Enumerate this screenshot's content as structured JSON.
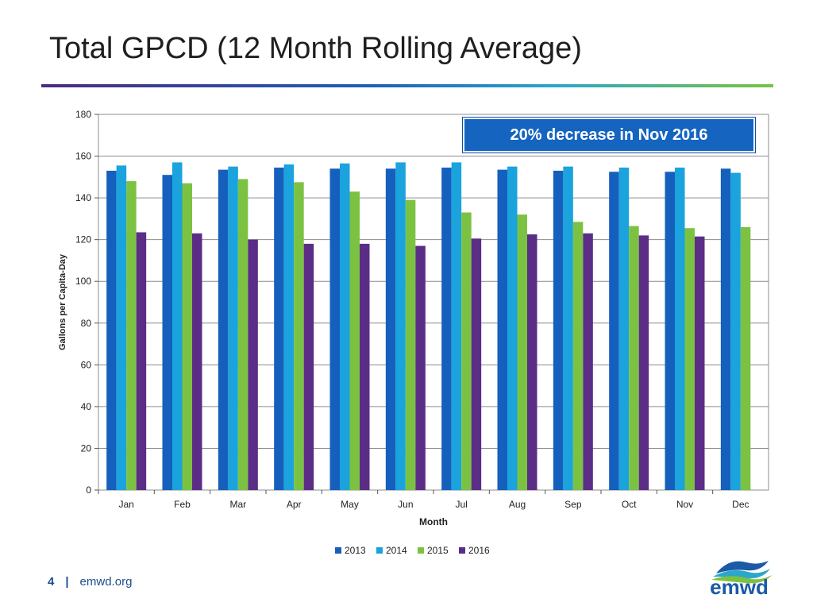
{
  "slide": {
    "title": "Total GPCD (12 Month Rolling Average)",
    "page_number": "4",
    "separator": "|",
    "website": "emwd.org",
    "logo_text": "emwd"
  },
  "callout": {
    "text": "20% decrease in Nov 2016"
  },
  "colors": {
    "2013": "#1560bd",
    "2014": "#1aa3dd",
    "2015": "#7cc242",
    "2016": "#5b2d87",
    "gridline": "#8c8c8c",
    "axis": "#555555"
  },
  "chart_data": {
    "type": "bar",
    "title": "",
    "xlabel": "Month",
    "ylabel": "Gallons per Capita-Day",
    "ylim": [
      0,
      180
    ],
    "yticks": [
      0,
      20,
      40,
      60,
      80,
      100,
      120,
      140,
      160,
      180
    ],
    "grid": true,
    "legend_position": "bottom",
    "categories": [
      "Jan",
      "Feb",
      "Mar",
      "Apr",
      "May",
      "Jun",
      "Jul",
      "Aug",
      "Sep",
      "Oct",
      "Nov",
      "Dec"
    ],
    "series": [
      {
        "name": "2013",
        "values": [
          153,
          151,
          153.5,
          154.5,
          154,
          154,
          154.5,
          153.5,
          153,
          152.5,
          152.5,
          154
        ]
      },
      {
        "name": "2014",
        "values": [
          155.5,
          157,
          155,
          156,
          156.5,
          157,
          157,
          155,
          155,
          154.5,
          154.5,
          152
        ]
      },
      {
        "name": "2015",
        "values": [
          148,
          147,
          149,
          147.5,
          143,
          139,
          133,
          132,
          128.5,
          126.5,
          125.5,
          126
        ]
      },
      {
        "name": "2016",
        "values": [
          123.5,
          123,
          120,
          118,
          118,
          117,
          120.5,
          122.5,
          123,
          122,
          121.5,
          null
        ]
      }
    ]
  }
}
